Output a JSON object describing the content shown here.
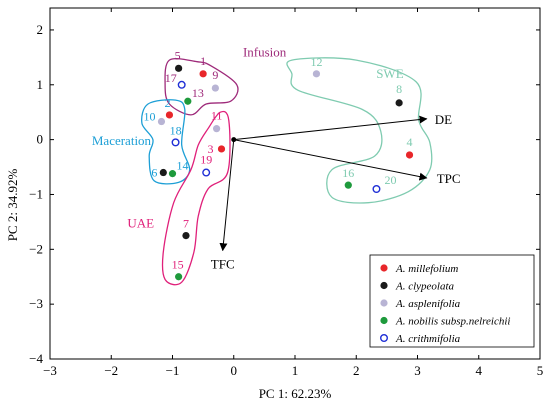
{
  "chart_data": {
    "type": "scatter",
    "xlabel": "PC 1: 62.23%",
    "ylabel": "PC 2: 34.92%",
    "xlim": [
      -3,
      5
    ],
    "ylim": [
      -4,
      2.4
    ],
    "xticks": [
      "−3",
      "−2",
      "−1",
      "0",
      "1",
      "2",
      "3",
      "4",
      "5"
    ],
    "yticks": [
      "−4",
      "−3",
      "−2",
      "−1",
      "0",
      "1",
      "2"
    ],
    "xtick_values": [
      -3,
      -2,
      -1,
      0,
      1,
      2,
      3,
      4,
      5
    ],
    "ytick_values": [
      -4,
      -3,
      -2,
      -1,
      0,
      1,
      2
    ],
    "grid": false,
    "legend_position": "bottom-right",
    "series": [
      {
        "name": "A. millefolium",
        "color": "#e8262a",
        "marker": "filled",
        "points": [
          {
            "label": "1",
            "x": -0.5,
            "y": 1.2
          },
          {
            "label": "2",
            "x": -1.05,
            "y": 0.45
          },
          {
            "label": "3",
            "x": -0.2,
            "y": -0.17
          },
          {
            "label": "4",
            "x": 2.87,
            "y": -0.28
          }
        ]
      },
      {
        "name": "A. clypeolata",
        "color": "#1a1a1a",
        "marker": "filled",
        "points": [
          {
            "label": "5",
            "x": -0.9,
            "y": 1.3
          },
          {
            "label": "6",
            "x": -1.15,
            "y": -0.6
          },
          {
            "label": "7",
            "x": -0.78,
            "y": -1.75
          },
          {
            "label": "8",
            "x": 2.7,
            "y": 0.67
          }
        ]
      },
      {
        "name": "A. asplenifolia",
        "color": "#b8b4d4",
        "marker": "filled",
        "points": [
          {
            "label": "9",
            "x": -0.3,
            "y": 0.94
          },
          {
            "label": "10",
            "x": -1.18,
            "y": 0.33
          },
          {
            "label": "11",
            "x": -0.28,
            "y": 0.2
          },
          {
            "label": "12",
            "x": 1.35,
            "y": 1.2
          }
        ]
      },
      {
        "name": "A. nobilis subsp.nelreichii",
        "color": "#1e9a3c",
        "marker": "filled",
        "points": [
          {
            "label": "13",
            "x": -0.75,
            "y": 0.7
          },
          {
            "label": "14",
            "x": -1.0,
            "y": -0.62
          },
          {
            "label": "15",
            "x": -0.9,
            "y": -2.5
          },
          {
            "label": "16",
            "x": 1.87,
            "y": -0.83
          }
        ]
      },
      {
        "name": "A. crithmifolia",
        "color": "#1f2fd6",
        "marker": "open",
        "points": [
          {
            "label": "17",
            "x": -0.85,
            "y": 1.0
          },
          {
            "label": "18",
            "x": -0.95,
            "y": -0.05
          },
          {
            "label": "19",
            "x": -0.45,
            "y": -0.6
          },
          {
            "label": "20",
            "x": 2.33,
            "y": -0.9
          }
        ]
      }
    ],
    "vectors": [
      {
        "label": "DE",
        "x": 3.15,
        "y": 0.38
      },
      {
        "label": "TPC",
        "x": 3.15,
        "y": -0.7
      },
      {
        "label": "TFC",
        "x": -0.18,
        "y": -2.02
      }
    ],
    "groups": [
      {
        "label": "Infusion",
        "color": "#9e2a7a"
      },
      {
        "label": "SWE",
        "color": "#7fcbb0"
      },
      {
        "label": "Maceration",
        "color": "#1d9fd6"
      },
      {
        "label": "UAE",
        "color": "#e0207a"
      }
    ]
  }
}
